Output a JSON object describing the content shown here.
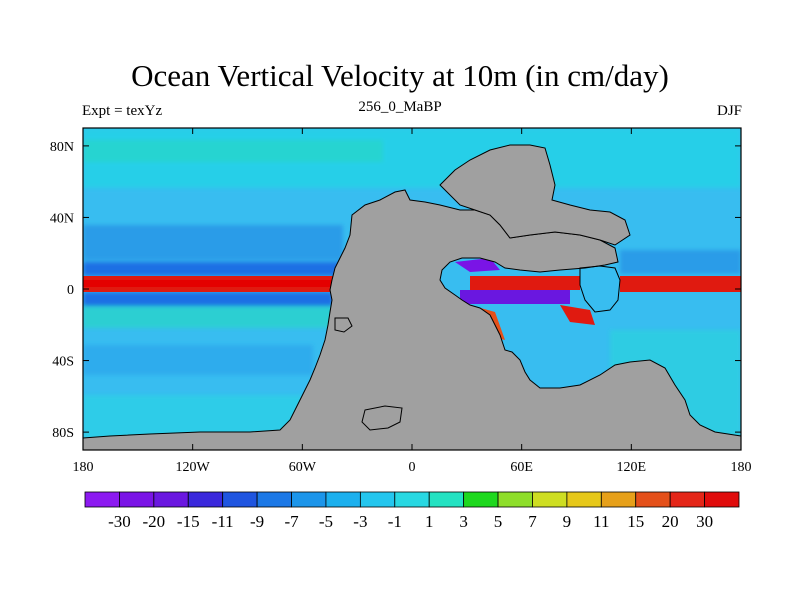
{
  "title": "Ocean Vertical Velocity at 10m (in cm/day)",
  "left_label": "Expt = texYz",
  "center_label": "256_0_MaBP",
  "right_label": "DJF",
  "colors": {
    "land": "#a0a0a0",
    "ocean_base": "#38bdf0",
    "frame": "#000000"
  },
  "map": {
    "lon_range": [
      -180,
      180
    ],
    "lat_range": [
      -90,
      90
    ],
    "x_ticks": [
      {
        "value": -180,
        "label": "180"
      },
      {
        "value": -120,
        "label": "120W"
      },
      {
        "value": -60,
        "label": "60W"
      },
      {
        "value": 0,
        "label": "0"
      },
      {
        "value": 60,
        "label": "60E"
      },
      {
        "value": 120,
        "label": "120E"
      },
      {
        "value": 180,
        "label": "180"
      }
    ],
    "y_ticks": [
      {
        "value": 80,
        "label": "80N"
      },
      {
        "value": 40,
        "label": "40N"
      },
      {
        "value": 0,
        "label": "0"
      },
      {
        "value": -40,
        "label": "40S"
      },
      {
        "value": -80,
        "label": "80S"
      }
    ]
  },
  "colorbar": {
    "labels": [
      "-30",
      "-20",
      "-15",
      "-11",
      "-9",
      "-7",
      "-5",
      "-3",
      "-1",
      "1",
      "3",
      "5",
      "7",
      "9",
      "11",
      "15",
      "20",
      "30"
    ],
    "colors": [
      "#8c1af0",
      "#7a14e6",
      "#6a17e0",
      "#3a28dc",
      "#1f55e0",
      "#1c78e6",
      "#1c95ea",
      "#1cb0ee",
      "#24c6ee",
      "#28d8e2",
      "#24e2c2",
      "#1ed81e",
      "#8ede2a",
      "#cede22",
      "#e6c81a",
      "#e6a01a",
      "#e4501a",
      "#e42618",
      "#e00c0c"
    ]
  }
}
